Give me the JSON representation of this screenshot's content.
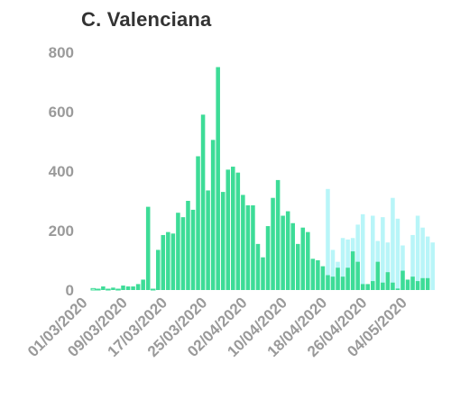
{
  "chart_data": {
    "type": "bar",
    "title": "C. Valenciana",
    "xlabel": "",
    "ylabel": "",
    "ylim": [
      0,
      800
    ],
    "yticks": [
      "0",
      "200",
      "400",
      "600",
      "800"
    ],
    "grid": false,
    "legend": "none",
    "xtick_labels": [
      "01/03/2020",
      "09/03/2020",
      "17/03/2020",
      "25/03/2020",
      "02/04/2020",
      "10/04/2020",
      "18/04/2020",
      "26/04/2020",
      "04/05/2020"
    ],
    "xtick_indices": [
      0,
      8,
      16,
      24,
      32,
      40,
      48,
      56,
      64
    ],
    "categories": [
      "01/03/2020",
      "02/03/2020",
      "03/03/2020",
      "04/03/2020",
      "05/03/2020",
      "06/03/2020",
      "07/03/2020",
      "08/03/2020",
      "09/03/2020",
      "10/03/2020",
      "11/03/2020",
      "12/03/2020",
      "13/03/2020",
      "14/03/2020",
      "15/03/2020",
      "16/03/2020",
      "17/03/2020",
      "18/03/2020",
      "19/03/2020",
      "20/03/2020",
      "21/03/2020",
      "22/03/2020",
      "23/03/2020",
      "24/03/2020",
      "25/03/2020",
      "26/03/2020",
      "27/03/2020",
      "28/03/2020",
      "29/03/2020",
      "30/03/2020",
      "31/03/2020",
      "01/04/2020",
      "02/04/2020",
      "03/04/2020",
      "04/04/2020",
      "05/04/2020",
      "06/04/2020",
      "07/04/2020",
      "08/04/2020",
      "09/04/2020",
      "10/04/2020",
      "11/04/2020",
      "12/04/2020",
      "13/04/2020",
      "14/04/2020",
      "15/04/2020",
      "16/04/2020",
      "17/04/2020",
      "18/04/2020",
      "19/04/2020",
      "20/04/2020",
      "21/04/2020",
      "22/04/2020",
      "23/04/2020",
      "24/04/2020",
      "25/04/2020",
      "26/04/2020",
      "27/04/2020",
      "28/04/2020",
      "29/04/2020",
      "30/04/2020",
      "01/05/2020",
      "02/05/2020",
      "03/05/2020",
      "04/05/2020",
      "05/05/2020",
      "06/05/2020",
      "07/05/2020",
      "08/05/2020",
      "09/05/2020",
      "10/05/2020"
    ],
    "series": [
      {
        "color": "#3ddc97",
        "values": [
          0,
          5,
          3,
          12,
          3,
          8,
          3,
          15,
          12,
          12,
          20,
          35,
          280,
          3,
          135,
          185,
          195,
          190,
          260,
          245,
          300,
          270,
          450,
          590,
          335,
          505,
          750,
          330,
          405,
          415,
          395,
          320,
          285,
          285,
          155,
          110,
          215,
          310,
          370,
          250,
          265,
          225,
          155,
          210,
          195,
          105,
          100,
          80,
          50,
          45,
          75,
          45,
          75,
          130,
          95,
          20,
          20,
          30,
          95,
          25,
          60,
          25,
          5,
          65,
          35,
          45,
          30,
          40,
          40,
          0,
          0
        ],
        "stroke": [
          false,
          true,
          true,
          false,
          true,
          false,
          true,
          false,
          false,
          false,
          false,
          false,
          false,
          true,
          false,
          false,
          false,
          false,
          false,
          false,
          false,
          false,
          false,
          false,
          false,
          false,
          false,
          false,
          false,
          false,
          false,
          false,
          false,
          false,
          false,
          false,
          false,
          false,
          false,
          false,
          false,
          false,
          false,
          false,
          false,
          false,
          false,
          false,
          false,
          false,
          false,
          false,
          false,
          false,
          false,
          false,
          false,
          false,
          false,
          false,
          false,
          false,
          false,
          false,
          false,
          false,
          false,
          false,
          false,
          false,
          false
        ]
      },
      {
        "color": "#b8f5f8",
        "values": [
          0,
          0,
          0,
          0,
          0,
          0,
          0,
          0,
          0,
          0,
          0,
          0,
          0,
          0,
          0,
          0,
          0,
          0,
          0,
          0,
          0,
          0,
          0,
          0,
          0,
          0,
          0,
          0,
          0,
          0,
          0,
          0,
          0,
          0,
          0,
          0,
          0,
          0,
          0,
          0,
          0,
          0,
          0,
          0,
          0,
          0,
          0,
          0,
          340,
          135,
          95,
          175,
          170,
          175,
          220,
          255,
          15,
          250,
          165,
          245,
          160,
          310,
          240,
          150,
          15,
          185,
          250,
          210,
          180,
          160,
          0
        ]
      }
    ]
  }
}
